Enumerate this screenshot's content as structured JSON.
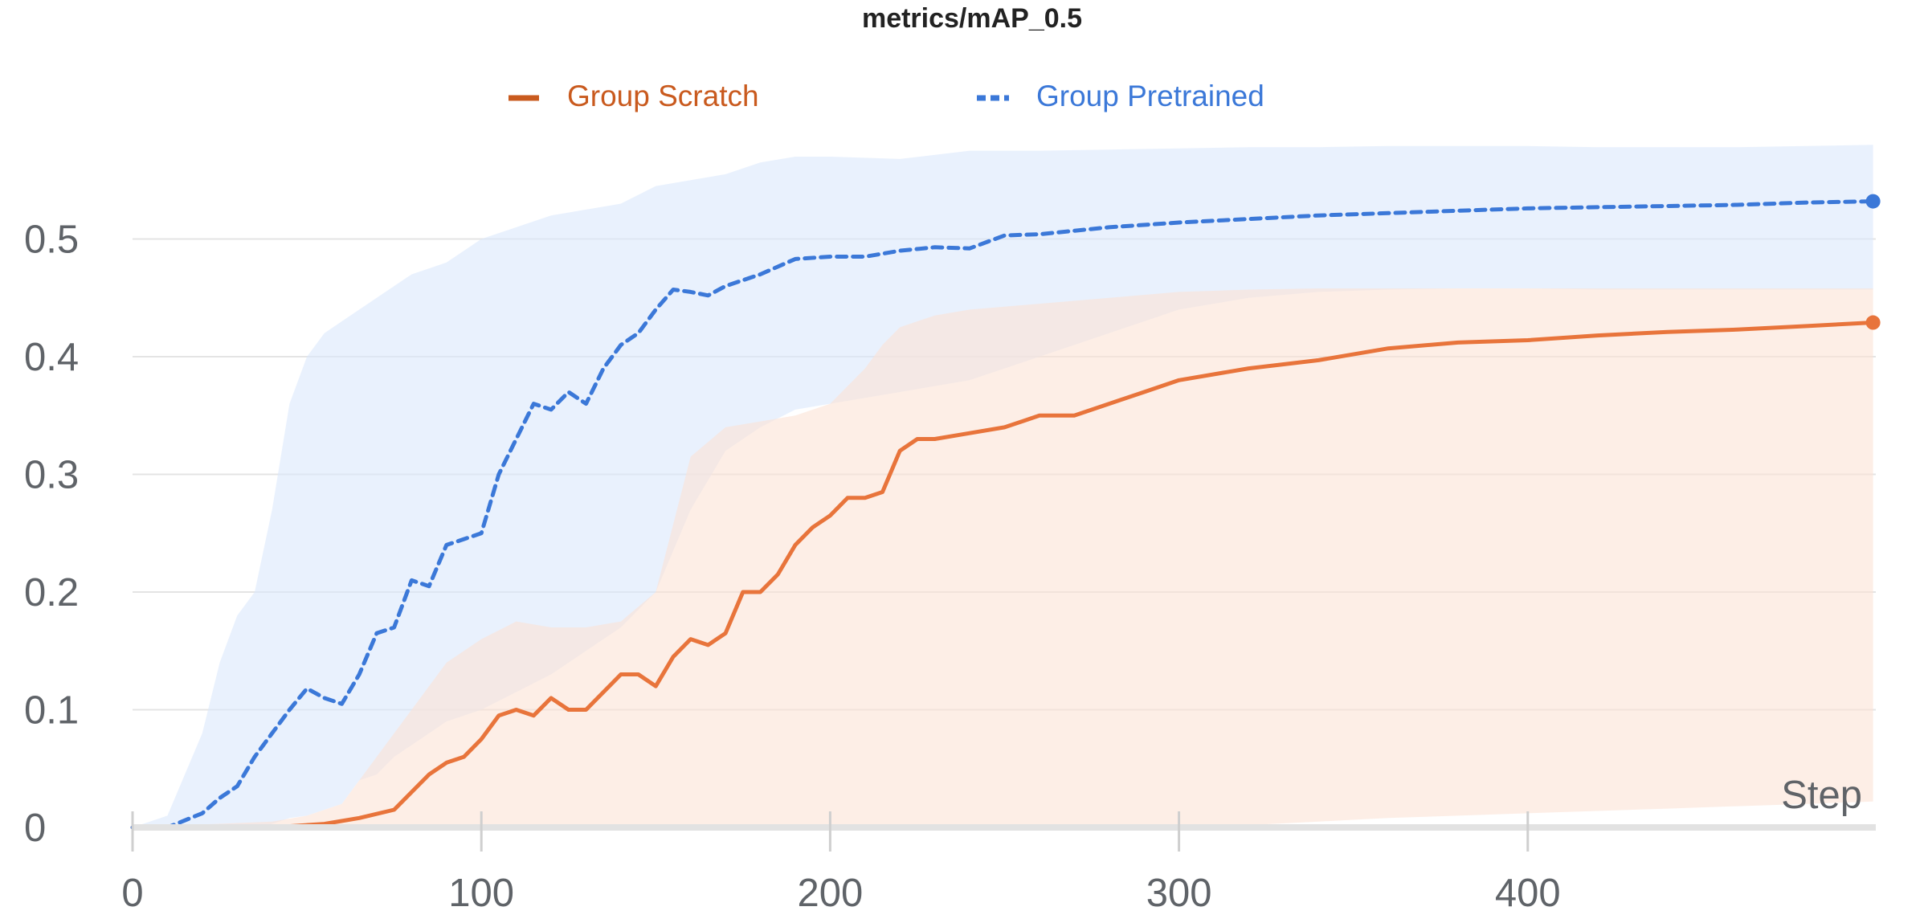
{
  "chart_data": {
    "type": "line",
    "title": "metrics/mAP_0.5",
    "xlabel": "Step",
    "ylabel": "",
    "xlim": [
      0,
      500
    ],
    "ylim": [
      0,
      0.55
    ],
    "x_ticks": [
      "0",
      "100",
      "200",
      "300",
      "400"
    ],
    "y_ticks": [
      "0",
      "0.1",
      "0.2",
      "0.3",
      "0.4",
      "0.5"
    ],
    "grid": true,
    "legend_position": "top-center",
    "series": [
      {
        "name": "Group Scratch",
        "color": "#e8743b",
        "legend_color": "#c95a1e",
        "style": "solid",
        "x": [
          0,
          40,
          55,
          65,
          75,
          80,
          85,
          90,
          95,
          100,
          105,
          110,
          115,
          120,
          125,
          130,
          135,
          140,
          145,
          150,
          155,
          160,
          165,
          170,
          175,
          180,
          185,
          190,
          195,
          200,
          205,
          210,
          215,
          220,
          225,
          230,
          240,
          250,
          260,
          270,
          280,
          290,
          300,
          320,
          340,
          360,
          380,
          400,
          420,
          440,
          460,
          480,
          499
        ],
        "values": [
          0.0,
          0.0,
          0.003,
          0.008,
          0.015,
          0.03,
          0.045,
          0.055,
          0.06,
          0.075,
          0.095,
          0.1,
          0.095,
          0.11,
          0.1,
          0.1,
          0.115,
          0.13,
          0.13,
          0.12,
          0.145,
          0.16,
          0.155,
          0.165,
          0.2,
          0.2,
          0.215,
          0.24,
          0.255,
          0.265,
          0.28,
          0.28,
          0.285,
          0.32,
          0.33,
          0.33,
          0.335,
          0.34,
          0.35,
          0.35,
          0.36,
          0.37,
          0.38,
          0.39,
          0.397,
          0.407,
          0.412,
          0.414,
          0.418,
          0.421,
          0.423,
          0.426,
          0.429
        ]
      },
      {
        "name": "Group Pretrained",
        "color": "#3b78d8",
        "legend_color": "#3b78d8",
        "style": "dashed",
        "x": [
          0,
          10,
          20,
          25,
          30,
          35,
          40,
          45,
          50,
          55,
          60,
          65,
          70,
          75,
          80,
          85,
          90,
          95,
          100,
          105,
          110,
          115,
          120,
          125,
          130,
          135,
          140,
          145,
          150,
          155,
          160,
          165,
          170,
          175,
          180,
          190,
          200,
          210,
          220,
          230,
          240,
          250,
          260,
          280,
          300,
          320,
          340,
          360,
          380,
          400,
          420,
          440,
          460,
          480,
          499
        ],
        "values": [
          0.0,
          0.0,
          0.012,
          0.025,
          0.035,
          0.06,
          0.08,
          0.1,
          0.118,
          0.11,
          0.105,
          0.13,
          0.165,
          0.17,
          0.21,
          0.205,
          0.24,
          0.245,
          0.25,
          0.3,
          0.33,
          0.36,
          0.355,
          0.37,
          0.36,
          0.39,
          0.41,
          0.42,
          0.44,
          0.457,
          0.455,
          0.452,
          0.46,
          0.465,
          0.47,
          0.483,
          0.485,
          0.485,
          0.49,
          0.493,
          0.492,
          0.503,
          0.504,
          0.51,
          0.514,
          0.517,
          0.52,
          0.522,
          0.524,
          0.526,
          0.527,
          0.528,
          0.529,
          0.531,
          0.532
        ]
      }
    ],
    "bands": [
      {
        "series": "Group Pretrained",
        "color": "#dbe8fb",
        "x": [
          0,
          10,
          20,
          25,
          30,
          35,
          40,
          45,
          50,
          55,
          60,
          65,
          70,
          75,
          80,
          90,
          100,
          110,
          120,
          130,
          140,
          150,
          160,
          170,
          180,
          190,
          200,
          220,
          240,
          260,
          280,
          300,
          320,
          340,
          360,
          380,
          400,
          420,
          440,
          460,
          480,
          499
        ],
        "upper": [
          0.0,
          0.01,
          0.08,
          0.14,
          0.18,
          0.2,
          0.27,
          0.36,
          0.4,
          0.42,
          0.43,
          0.44,
          0.45,
          0.46,
          0.47,
          0.48,
          0.5,
          0.51,
          0.52,
          0.525,
          0.53,
          0.545,
          0.55,
          0.555,
          0.565,
          0.57,
          0.57,
          0.568,
          0.575,
          0.575,
          0.576,
          0.577,
          0.578,
          0.578,
          0.579,
          0.579,
          0.579,
          0.578,
          0.578,
          0.578,
          0.579,
          0.58
        ],
        "lower": [
          0.0,
          0.0,
          0.0,
          0.0,
          0.0,
          0.0,
          0.003,
          0.008,
          0.01,
          0.015,
          0.02,
          0.04,
          0.045,
          0.06,
          0.07,
          0.09,
          0.1,
          0.115,
          0.13,
          0.15,
          0.17,
          0.2,
          0.27,
          0.32,
          0.34,
          0.355,
          0.36,
          0.37,
          0.38,
          0.4,
          0.42,
          0.44,
          0.45,
          0.455,
          0.457,
          0.458,
          0.458,
          0.457,
          0.457,
          0.457,
          0.457,
          0.457
        ]
      },
      {
        "series": "Group Scratch",
        "color": "#fbe3d6",
        "x": [
          0,
          40,
          50,
          60,
          70,
          80,
          90,
          100,
          110,
          120,
          130,
          140,
          150,
          160,
          170,
          180,
          190,
          200,
          210,
          215,
          220,
          225,
          230,
          240,
          260,
          280,
          300,
          320,
          340,
          360,
          380,
          400,
          420,
          440,
          460,
          480,
          499
        ],
        "upper": [
          0.0,
          0.005,
          0.01,
          0.02,
          0.06,
          0.1,
          0.14,
          0.16,
          0.175,
          0.17,
          0.17,
          0.175,
          0.2,
          0.315,
          0.34,
          0.345,
          0.35,
          0.36,
          0.39,
          0.41,
          0.425,
          0.43,
          0.435,
          0.44,
          0.445,
          0.45,
          0.455,
          0.457,
          0.458,
          0.458,
          0.458,
          0.458,
          0.458,
          0.458,
          0.458,
          0.458,
          0.458
        ],
        "lower": [
          0.0,
          0.0,
          0.0,
          0.0,
          0.0,
          0.0,
          0.0,
          0.0,
          0.0,
          0.0,
          0.0,
          0.0,
          0.0,
          0.0,
          0.0,
          0.0,
          0.0,
          0.0,
          0.0,
          0.0,
          0.0,
          0.0,
          0.0,
          0.0,
          0.0,
          0.0,
          0.0,
          0.002,
          0.005,
          0.008,
          0.01,
          0.012,
          0.014,
          0.016,
          0.018,
          0.02,
          0.022
        ]
      }
    ]
  }
}
